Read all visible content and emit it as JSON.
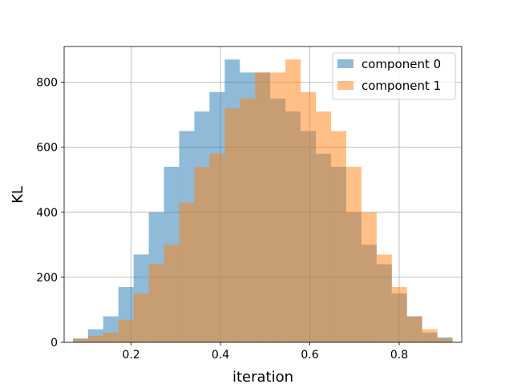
{
  "chart_data": {
    "type": "bar",
    "subtype": "overlapping-histogram",
    "title": "",
    "xlabel": "iteration",
    "ylabel": "KL",
    "xlim": [
      0.05,
      0.94
    ],
    "ylim": [
      0,
      910
    ],
    "xticks": [
      0.2,
      0.4,
      0.6,
      0.8
    ],
    "xtick_labels": [
      "0.2",
      "0.4",
      "0.6",
      "0.8"
    ],
    "yticks": [
      0,
      200,
      400,
      600,
      800
    ],
    "ytick_labels": [
      "0",
      "200",
      "400",
      "600",
      "800"
    ],
    "grid": true,
    "legend": "top-right",
    "bin_edges": [
      0.07,
      0.1035,
      0.1375,
      0.1715,
      0.2055,
      0.2395,
      0.2735,
      0.3075,
      0.3415,
      0.3755,
      0.4095,
      0.4435,
      0.4775,
      0.5115,
      0.5455,
      0.5795,
      0.6135,
      0.6475,
      0.6815,
      0.7155,
      0.7495,
      0.7835,
      0.8175,
      0.8515,
      0.8855,
      0.9195
    ],
    "series": [
      {
        "name": "component 0",
        "color": "#1f77b4",
        "counts": [
          12,
          40,
          80,
          170,
          270,
          400,
          540,
          650,
          710,
          770,
          870,
          830,
          830,
          750,
          710,
          650,
          580,
          540,
          400,
          300,
          240,
          150,
          80,
          30,
          15
        ]
      },
      {
        "name": "component 1",
        "color": "#ff7f0e",
        "counts": [
          10,
          20,
          30,
          70,
          150,
          240,
          300,
          430,
          540,
          580,
          720,
          750,
          830,
          830,
          870,
          770,
          710,
          650,
          540,
          400,
          270,
          170,
          80,
          40,
          12
        ]
      }
    ],
    "alpha": 0.5
  }
}
